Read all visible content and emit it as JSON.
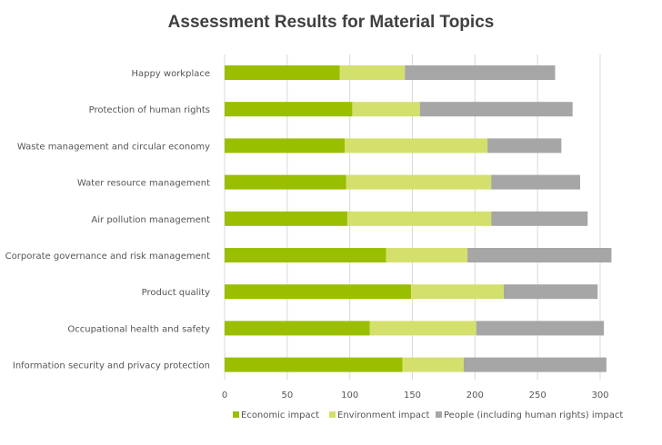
{
  "chart_data": {
    "type": "bar",
    "orientation": "horizontal",
    "stacked": true,
    "title": "Assessment Results for Material Topics",
    "categories": [
      "Happy workplace",
      "Protection of human rights",
      "Waste management and circular economy",
      "Water resource management",
      "Air pollution management",
      "Corporate governance and risk management",
      "Product quality",
      "Occupational health and safety",
      "Information security and privacy protection"
    ],
    "series": [
      {
        "name": "Economic impact",
        "color": "#99bf00",
        "values": [
          92,
          102,
          96,
          97,
          98,
          129,
          149,
          116,
          142
        ]
      },
      {
        "name": "Environment impact",
        "color": "#d4e06c",
        "values": [
          52,
          54,
          114,
          116,
          115,
          65,
          74,
          85,
          49
        ]
      },
      {
        "name": "People (including human rights) impact",
        "color": "#a6a6a6",
        "values": [
          120,
          122,
          59,
          71,
          77,
          115,
          75,
          102,
          114
        ]
      }
    ],
    "xlim": [
      0,
      300
    ],
    "xticks": [
      0,
      50,
      100,
      150,
      200,
      250,
      300
    ],
    "grid": true,
    "legend_position": "bottom"
  }
}
